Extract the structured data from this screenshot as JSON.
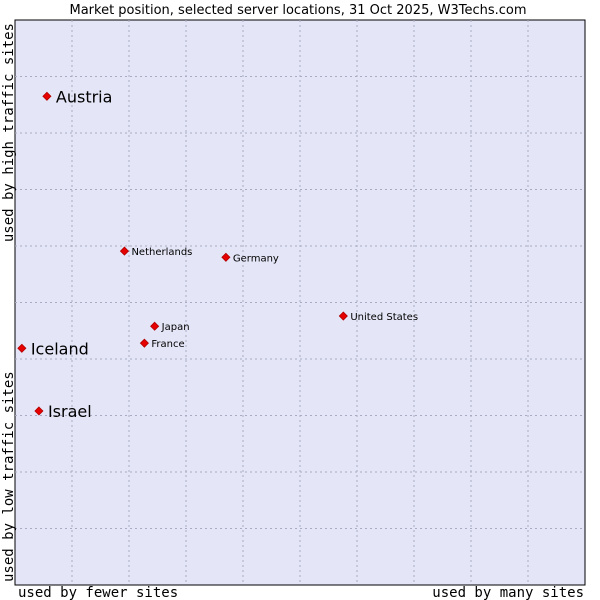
{
  "chart_data": {
    "type": "scatter",
    "title": "Market position, selected server locations, 31 Oct 2025, W3Techs.com",
    "xlabel_left": "used by fewer sites",
    "xlabel_right": "used by many sites",
    "ylabel_bottom": "used by low traffic sites",
    "ylabel_top": "used by high traffic sites",
    "xlim": [
      0,
      100
    ],
    "ylim": [
      0,
      100
    ],
    "grid": true,
    "colors": {
      "plot_background": "#e4e6f7",
      "grid": "#a9abc0",
      "marker": "#e60000",
      "border": "#000000"
    },
    "points": [
      {
        "label": "Austria",
        "x": 5.6,
        "y": 86.5,
        "size": "large"
      },
      {
        "label": "Netherlands",
        "x": 19.2,
        "y": 59.1,
        "size": "small"
      },
      {
        "label": "Germany",
        "x": 37.0,
        "y": 58.0,
        "size": "small"
      },
      {
        "label": "United States",
        "x": 57.6,
        "y": 47.6,
        "size": "small"
      },
      {
        "label": "Japan",
        "x": 24.5,
        "y": 45.8,
        "size": "small"
      },
      {
        "label": "France",
        "x": 22.7,
        "y": 42.8,
        "size": "small"
      },
      {
        "label": "Iceland",
        "x": 1.2,
        "y": 41.9,
        "size": "large"
      },
      {
        "label": "Israel",
        "x": 4.2,
        "y": 30.8,
        "size": "large"
      }
    ]
  }
}
